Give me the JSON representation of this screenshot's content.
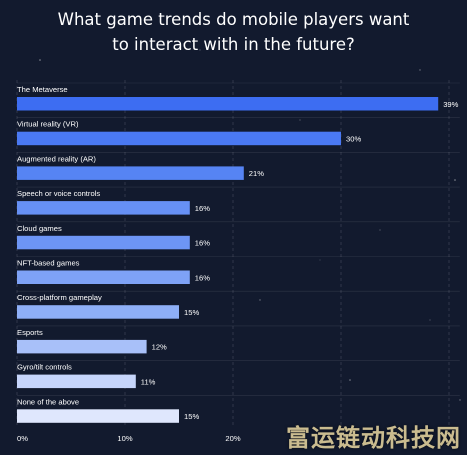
{
  "chart_data": {
    "type": "bar",
    "orientation": "horizontal",
    "title_lines": [
      "What game trends do mobile players want",
      "to interact with in the future?"
    ],
    "categories": [
      "The Metaverse",
      "Virtual reality (VR)",
      "Augmented reality (AR)",
      "Speech or voice controls",
      "Cloud games",
      "NFT-based games",
      "Cross-platform gameplay",
      "Esports",
      "Gyro/tilt controls",
      "None of the above"
    ],
    "values": [
      39,
      30,
      21,
      16,
      16,
      16,
      15,
      12,
      11,
      15
    ],
    "value_labels": [
      "39%",
      "30%",
      "21%",
      "16%",
      "16%",
      "16%",
      "15%",
      "12%",
      "11%",
      "15%"
    ],
    "x_ticks": [
      0,
      10,
      20
    ],
    "x_tick_labels": [
      "0%",
      "10%",
      "20%"
    ],
    "xlim": [
      0,
      41
    ],
    "grid": true,
    "bar_colors": [
      "#3d6df2",
      "#4a79f3",
      "#5684f4",
      "#6690f5",
      "#6d95f5",
      "#7ea2f6",
      "#8eaff7",
      "#a8c0f9",
      "#c6d5fb",
      "#dfe7fd"
    ]
  },
  "watermark": "富运链动科技网"
}
